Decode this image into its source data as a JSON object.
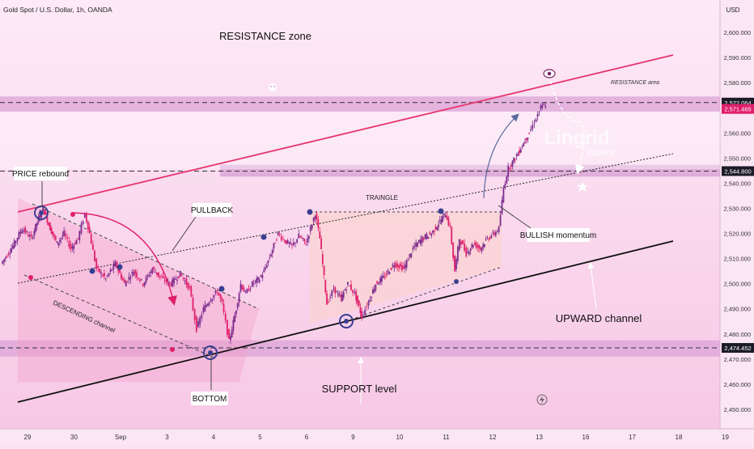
{
  "header": {
    "symbol_title": "Gold Spot / U.S. Dollar, 1h, OANDA",
    "currency": "USD"
  },
  "colors": {
    "background": "#fbe3f3",
    "plot_bg": "#fbe6f4",
    "resistance_band": "#dca3d7",
    "up_candle": "#7b2a8d",
    "down_candle": "#e01f6b",
    "channel_top": "#e8366f",
    "channel_bottom": "#111111",
    "marker": "#3a3f8f"
  },
  "chart_data": {
    "type": "candlestick",
    "instrument": "Gold Spot / U.S. Dollar",
    "timeframe": "1h",
    "source": "OANDA",
    "y_axis": {
      "ticks": [
        2450,
        2460,
        2470,
        2480,
        2490,
        2500,
        2510,
        2520,
        2530,
        2540,
        2550,
        2560,
        2570,
        2580,
        2590,
        2600
      ],
      "tick_labels": [
        "2,450.000",
        "2,460.000",
        "2,470.000",
        "2,480.000",
        "2,490.000",
        "2,500.000",
        "2,510.000",
        "2,520.000",
        "2,530.000",
        "2,540.000",
        "2,550.000",
        "2,560.000",
        "2,570.000",
        "2,580.000",
        "2,590.000",
        "2,600.000"
      ],
      "ylim": [
        2445,
        2610
      ],
      "price_tags": [
        {
          "label": "2,572.064",
          "value": 2572.064,
          "style": "dark"
        },
        {
          "label": "2,571.465",
          "value": 2571.465,
          "style": "red"
        },
        {
          "label": "2,544.800",
          "value": 2544.8,
          "style": "dark"
        },
        {
          "label": "2,474.452",
          "value": 2474.452,
          "style": "dark"
        }
      ]
    },
    "x_axis": {
      "ticks": [
        {
          "label": "29",
          "day": 0
        },
        {
          "label": "30",
          "day": 1
        },
        {
          "label": "Sep",
          "day": 2
        },
        {
          "label": "3",
          "day": 3
        },
        {
          "label": "4",
          "day": 4
        },
        {
          "label": "5",
          "day": 5
        },
        {
          "label": "6",
          "day": 6
        },
        {
          "label": "9",
          "day": 7
        },
        {
          "label": "10",
          "day": 8
        },
        {
          "label": "11",
          "day": 9
        },
        {
          "label": "12",
          "day": 10
        },
        {
          "label": "13",
          "day": 11
        },
        {
          "label": "16",
          "day": 12
        },
        {
          "label": "17",
          "day": 13
        },
        {
          "label": "18",
          "day": 14
        },
        {
          "label": "19",
          "day": 15
        }
      ]
    },
    "key_levels": [
      2572.064,
      2544.8,
      2474.452
    ],
    "price_path": [
      [
        -0.55,
        2508
      ],
      [
        -0.3,
        2515
      ],
      [
        -0.1,
        2522
      ],
      [
        0.1,
        2518
      ],
      [
        0.25,
        2526
      ],
      [
        0.35,
        2530
      ],
      [
        0.5,
        2522
      ],
      [
        0.65,
        2516
      ],
      [
        0.8,
        2520
      ],
      [
        0.95,
        2514
      ],
      [
        1.1,
        2518
      ],
      [
        1.25,
        2528
      ],
      [
        1.35,
        2520
      ],
      [
        1.5,
        2506
      ],
      [
        1.7,
        2502
      ],
      [
        1.9,
        2508
      ],
      [
        2.1,
        2500
      ],
      [
        2.3,
        2505
      ],
      [
        2.5,
        2500
      ],
      [
        2.7,
        2506
      ],
      [
        2.9,
        2502
      ],
      [
        3.1,
        2500
      ],
      [
        3.3,
        2504
      ],
      [
        3.5,
        2498
      ],
      [
        3.65,
        2482
      ],
      [
        3.8,
        2490
      ],
      [
        3.95,
        2494
      ],
      [
        4.1,
        2497
      ],
      [
        4.2,
        2492
      ],
      [
        4.35,
        2477
      ],
      [
        4.5,
        2490
      ],
      [
        4.6,
        2500
      ],
      [
        4.7,
        2496
      ],
      [
        4.85,
        2500
      ],
      [
        5.0,
        2502
      ],
      [
        5.1,
        2505
      ],
      [
        5.25,
        2512
      ],
      [
        5.4,
        2520
      ],
      [
        5.55,
        2517
      ],
      [
        5.7,
        2515
      ],
      [
        5.85,
        2519
      ],
      [
        6.0,
        2516
      ],
      [
        6.1,
        2522
      ],
      [
        6.2,
        2528
      ],
      [
        6.3,
        2518
      ],
      [
        6.45,
        2492
      ],
      [
        6.6,
        2498
      ],
      [
        6.75,
        2494
      ],
      [
        6.9,
        2500
      ],
      [
        7.05,
        2496
      ],
      [
        7.2,
        2487
      ],
      [
        7.35,
        2493
      ],
      [
        7.5,
        2500
      ],
      [
        7.7,
        2503
      ],
      [
        7.9,
        2508
      ],
      [
        8.1,
        2506
      ],
      [
        8.3,
        2514
      ],
      [
        8.5,
        2518
      ],
      [
        8.7,
        2520
      ],
      [
        8.85,
        2524
      ],
      [
        9.0,
        2528
      ],
      [
        9.1,
        2522
      ],
      [
        9.2,
        2505
      ],
      [
        9.3,
        2518
      ],
      [
        9.45,
        2512
      ],
      [
        9.6,
        2516
      ],
      [
        9.75,
        2514
      ],
      [
        9.9,
        2518
      ],
      [
        10.05,
        2520
      ],
      [
        10.15,
        2522
      ],
      [
        10.25,
        2538
      ],
      [
        10.35,
        2546
      ],
      [
        10.5,
        2550
      ],
      [
        10.65,
        2555
      ],
      [
        10.8,
        2560
      ],
      [
        10.95,
        2566
      ],
      [
        11.05,
        2570
      ],
      [
        11.15,
        2571.465
      ]
    ],
    "annotations": [
      "RESISTANCE zone",
      "RESISTANCE area",
      "PRICE rebound",
      "PULLBACK",
      "TRAINGLE",
      "DESCENDING channel",
      "BOTTOM",
      "BULLISH momentum",
      "UPWARD channel",
      "SUPPORT level"
    ]
  },
  "labels": {
    "resistance_zone": "RESISTANCE zone",
    "resistance_area": "RESISTANCE area",
    "price_rebound": "PRICE rebound",
    "pullback": "PULLBACK",
    "triangle": "TRAINGLE",
    "descending_channel": "DESCENDING channel",
    "bottom": "BOTTOM",
    "bullish_momentum": "BULLISH momentum",
    "upward_channel": "UPWARD channel",
    "support_level": "SUPPORT level"
  },
  "watermark": {
    "brand": "Lingrid",
    "sub": "FOREX"
  }
}
